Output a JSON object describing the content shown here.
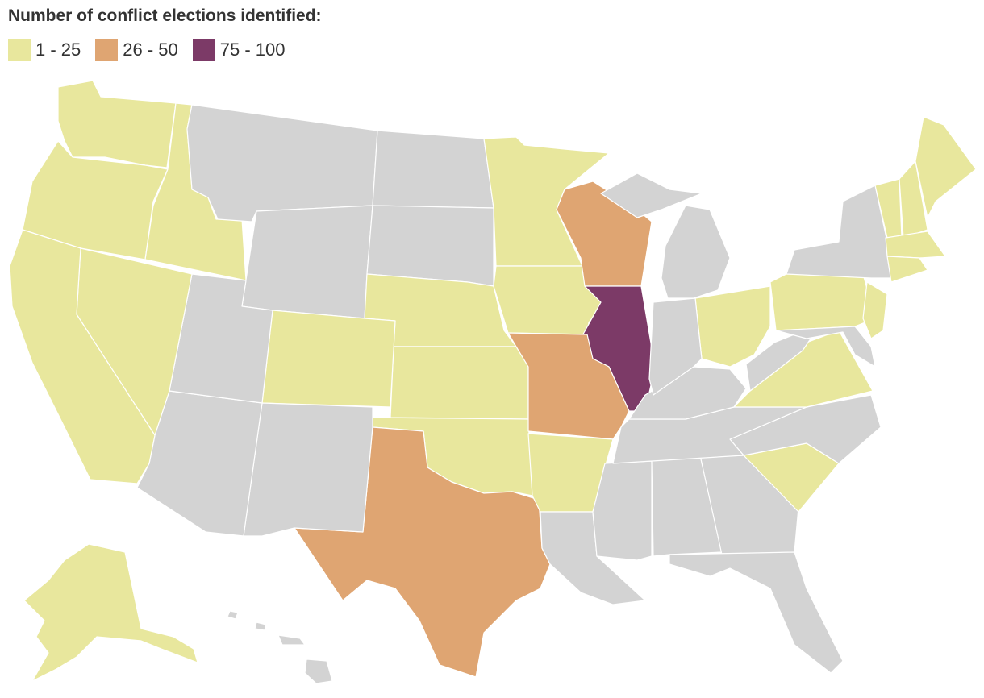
{
  "title": "Number of conflict elections identified:",
  "legend": [
    {
      "label": "1 - 25",
      "color": "#e8e79d"
    },
    {
      "label": "26 - 50",
      "color": "#dfa572"
    },
    {
      "label": "75 - 100",
      "color": "#7c3a67"
    }
  ],
  "no_data_color": "#d3d3d3"
}
